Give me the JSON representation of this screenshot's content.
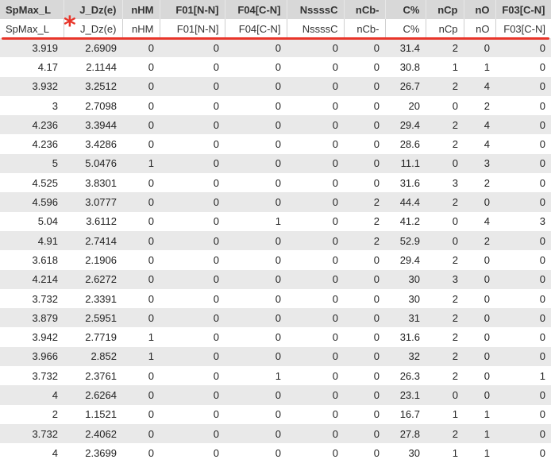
{
  "columns": [
    "SpMax_L",
    "J_Dz(e)",
    "nHM",
    "F01[N-N]",
    "F04[C-N]",
    "NssssC",
    "nCb-",
    "C%",
    "nCp",
    "nO",
    "F03[C-N]"
  ],
  "subheaders": [
    "SpMax_L",
    "J_Dz(e)",
    "nHM",
    "F01[N-N]",
    "F04[C-N]",
    "NssssC",
    "nCb-",
    "C%",
    "nCp",
    "nO",
    "F03[C-N]"
  ],
  "annotation_mark": "*",
  "colors": {
    "accent": "#e8352a",
    "header_bg": "#d8d8d8",
    "stripe_bg": "#e9e9e9"
  },
  "rows": [
    [
      "3.919",
      "2.6909",
      "0",
      "0",
      "0",
      "0",
      "0",
      "31.4",
      "2",
      "0",
      "0"
    ],
    [
      "4.17",
      "2.1144",
      "0",
      "0",
      "0",
      "0",
      "0",
      "30.8",
      "1",
      "1",
      "0"
    ],
    [
      "3.932",
      "3.2512",
      "0",
      "0",
      "0",
      "0",
      "0",
      "26.7",
      "2",
      "4",
      "0"
    ],
    [
      "3",
      "2.7098",
      "0",
      "0",
      "0",
      "0",
      "0",
      "20",
      "0",
      "2",
      "0"
    ],
    [
      "4.236",
      "3.3944",
      "0",
      "0",
      "0",
      "0",
      "0",
      "29.4",
      "2",
      "4",
      "0"
    ],
    [
      "4.236",
      "3.4286",
      "0",
      "0",
      "0",
      "0",
      "0",
      "28.6",
      "2",
      "4",
      "0"
    ],
    [
      "5",
      "5.0476",
      "1",
      "0",
      "0",
      "0",
      "0",
      "11.1",
      "0",
      "3",
      "0"
    ],
    [
      "4.525",
      "3.8301",
      "0",
      "0",
      "0",
      "0",
      "0",
      "31.6",
      "3",
      "2",
      "0"
    ],
    [
      "4.596",
      "3.0777",
      "0",
      "0",
      "0",
      "0",
      "2",
      "44.4",
      "2",
      "0",
      "0"
    ],
    [
      "5.04",
      "3.6112",
      "0",
      "0",
      "1",
      "0",
      "2",
      "41.2",
      "0",
      "4",
      "3"
    ],
    [
      "4.91",
      "2.7414",
      "0",
      "0",
      "0",
      "0",
      "2",
      "52.9",
      "0",
      "2",
      "0"
    ],
    [
      "3.618",
      "2.1906",
      "0",
      "0",
      "0",
      "0",
      "0",
      "29.4",
      "2",
      "0",
      "0"
    ],
    [
      "4.214",
      "2.6272",
      "0",
      "0",
      "0",
      "0",
      "0",
      "30",
      "3",
      "0",
      "0"
    ],
    [
      "3.732",
      "2.3391",
      "0",
      "0",
      "0",
      "0",
      "0",
      "30",
      "2",
      "0",
      "0"
    ],
    [
      "3.879",
      "2.5951",
      "0",
      "0",
      "0",
      "0",
      "0",
      "31",
      "2",
      "0",
      "0"
    ],
    [
      "3.942",
      "2.7719",
      "1",
      "0",
      "0",
      "0",
      "0",
      "31.6",
      "2",
      "0",
      "0"
    ],
    [
      "3.966",
      "2.852",
      "1",
      "0",
      "0",
      "0",
      "0",
      "32",
      "2",
      "0",
      "0"
    ],
    [
      "3.732",
      "2.3761",
      "0",
      "0",
      "1",
      "0",
      "0",
      "26.3",
      "2",
      "0",
      "1"
    ],
    [
      "4",
      "2.6264",
      "0",
      "0",
      "0",
      "0",
      "0",
      "23.1",
      "0",
      "0",
      "0"
    ],
    [
      "2",
      "1.1521",
      "0",
      "0",
      "0",
      "0",
      "0",
      "16.7",
      "1",
      "1",
      "0"
    ],
    [
      "3.732",
      "2.4062",
      "0",
      "0",
      "0",
      "0",
      "0",
      "27.8",
      "2",
      "1",
      "0"
    ],
    [
      "4",
      "2.3699",
      "0",
      "0",
      "0",
      "0",
      "0",
      "30",
      "1",
      "1",
      "0"
    ]
  ]
}
